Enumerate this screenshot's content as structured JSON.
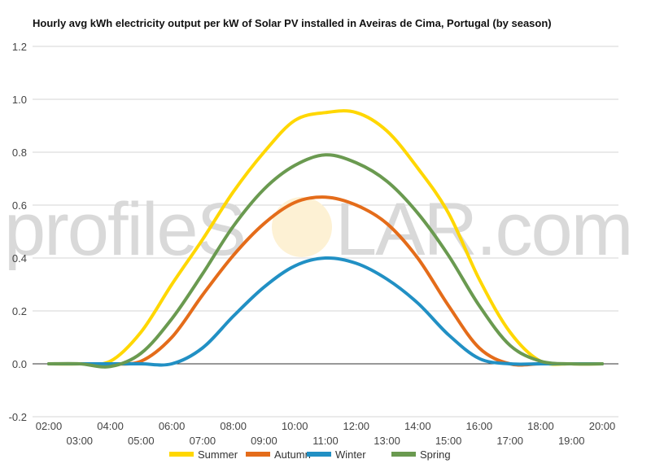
{
  "chart_data": {
    "type": "line",
    "title": "Hourly avg kWh electricity output per kW of Solar PV installed in Aveiras de Cima, Portugal (by season)",
    "xlabel": "",
    "ylabel": "",
    "ylim": [
      -0.2,
      1.2
    ],
    "yticks": [
      "-0.2",
      "0.0",
      "0.2",
      "0.4",
      "0.6",
      "0.8",
      "1.0",
      "1.2"
    ],
    "ytick_values": [
      -0.2,
      0,
      0.2,
      0.4,
      0.6,
      0.8,
      1.0,
      1.2
    ],
    "x": [
      2,
      3,
      4,
      5,
      6,
      7,
      8,
      9,
      10,
      11,
      12,
      13,
      14,
      15,
      16,
      17,
      18,
      19,
      20
    ],
    "x_tick_labels": [
      "02:00",
      "03:00",
      "04:00",
      "05:00",
      "06:00",
      "07:00",
      "08:00",
      "09:00",
      "10:00",
      "11:00",
      "12:00",
      "13:00",
      "14:00",
      "15:00",
      "16:00",
      "17:00",
      "18:00",
      "19:00",
      "20:00"
    ],
    "grid": true,
    "legend_position": "bottom",
    "series": [
      {
        "name": "Summer",
        "color": "#FFD700",
        "values": [
          0,
          0,
          0.01,
          0.12,
          0.3,
          0.47,
          0.65,
          0.8,
          0.92,
          0.95,
          0.95,
          0.88,
          0.74,
          0.57,
          0.32,
          0.12,
          0.01,
          0,
          0
        ]
      },
      {
        "name": "Autumn",
        "color": "#E46C1A",
        "values": [
          0,
          0,
          0,
          0.01,
          0.1,
          0.26,
          0.41,
          0.53,
          0.61,
          0.63,
          0.6,
          0.53,
          0.4,
          0.22,
          0.06,
          0,
          0,
          0,
          0
        ]
      },
      {
        "name": "Winter",
        "color": "#2190C4",
        "values": [
          0,
          0,
          0,
          0,
          0,
          0.06,
          0.18,
          0.29,
          0.37,
          0.4,
          0.38,
          0.32,
          0.23,
          0.11,
          0.02,
          0,
          0,
          0,
          0
        ]
      },
      {
        "name": "Spring",
        "color": "#6A9A50",
        "values": [
          0,
          0,
          -0.01,
          0.04,
          0.17,
          0.34,
          0.52,
          0.66,
          0.75,
          0.79,
          0.76,
          0.69,
          0.57,
          0.41,
          0.22,
          0.07,
          0.01,
          0,
          0
        ]
      }
    ]
  },
  "watermark": {
    "prefix": "profileS",
    "suffix": "LAR.com"
  }
}
